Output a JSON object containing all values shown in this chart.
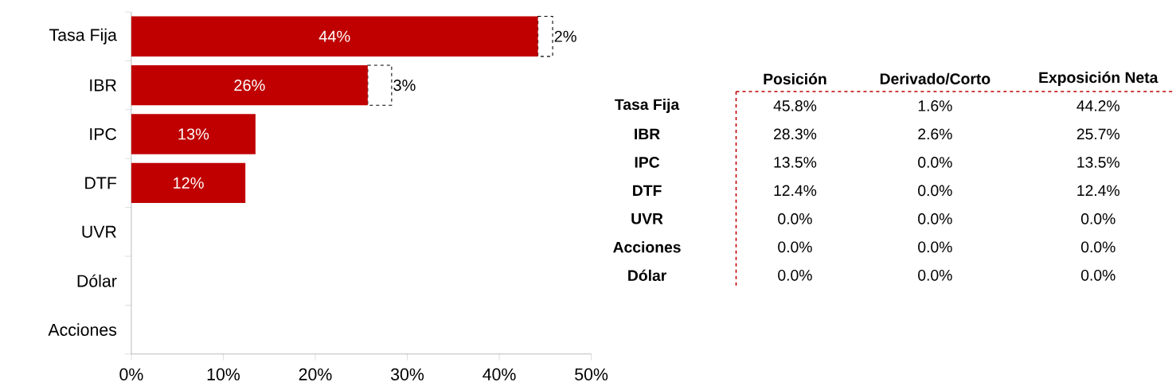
{
  "chart_data": [
    {
      "type": "bar",
      "orientation": "horizontal",
      "stacked": true,
      "categories": [
        "Tasa Fija",
        "IBR",
        "IPC",
        "DTF",
        "UVR",
        "Dólar",
        "Acciones"
      ],
      "series": [
        {
          "color": "#c00000",
          "values": [
            44.2,
            25.7,
            13.5,
            12.4,
            0,
            0,
            0
          ],
          "value_labels": [
            "44%",
            "26%",
            "13%",
            "12%",
            null,
            null,
            null
          ]
        },
        {
          "color": "#ffffff",
          "line_style": "dashed",
          "values": [
            1.6,
            2.6,
            0,
            0,
            0,
            0,
            0
          ],
          "value_labels": [
            "2%",
            "3%",
            null,
            null,
            null,
            null,
            null
          ]
        }
      ],
      "xlim": [
        0,
        50
      ],
      "xticks": [
        {
          "value": 0,
          "label": "0%"
        },
        {
          "value": 10,
          "label": "10%"
        },
        {
          "value": 20,
          "label": "20%"
        },
        {
          "value": 30,
          "label": "30%"
        },
        {
          "value": 40,
          "label": "40%"
        },
        {
          "value": 50,
          "label": "50%"
        }
      ]
    },
    {
      "type": "other",
      "categories": [
        "Posición",
        "Derivado/Corto",
        "Exposición Neta"
      ],
      "y_categories": [
        "Tasa Fija",
        "IBR",
        "IPC",
        "DTF",
        "UVR",
        "Acciones",
        "Dólar"
      ],
      "cell_labels": [
        [
          "45.8%",
          "1.6%",
          "44.2%"
        ],
        [
          "28.3%",
          "2.6%",
          "25.7%"
        ],
        [
          "13.5%",
          "0.0%",
          "13.5%"
        ],
        [
          "12.4%",
          "0.0%",
          "12.4%"
        ],
        [
          "0.0%",
          "0.0%",
          "0.0%"
        ],
        [
          "0.0%",
          "0.0%",
          "0.0%"
        ],
        [
          "0.0%",
          "0.0%",
          "0.0%"
        ]
      ]
    }
  ]
}
